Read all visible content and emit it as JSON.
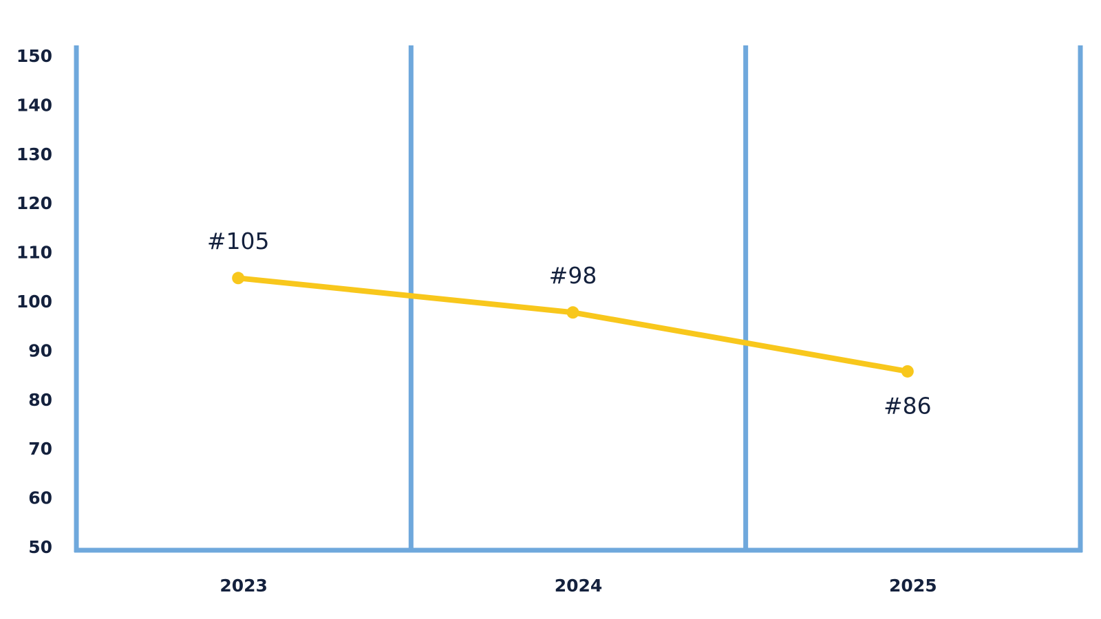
{
  "chart_data": {
    "type": "line",
    "categories": [
      "2023",
      "2024",
      "2025"
    ],
    "series": [
      {
        "color": "#f8c71c",
        "values": [
          105,
          98,
          86
        ],
        "value_labels": [
          "#105",
          "#98",
          "#86"
        ]
      }
    ],
    "ylim": [
      50,
      150
    ],
    "yticks": [
      50,
      60,
      70,
      80,
      90,
      100,
      110,
      120,
      130,
      140,
      150
    ]
  }
}
